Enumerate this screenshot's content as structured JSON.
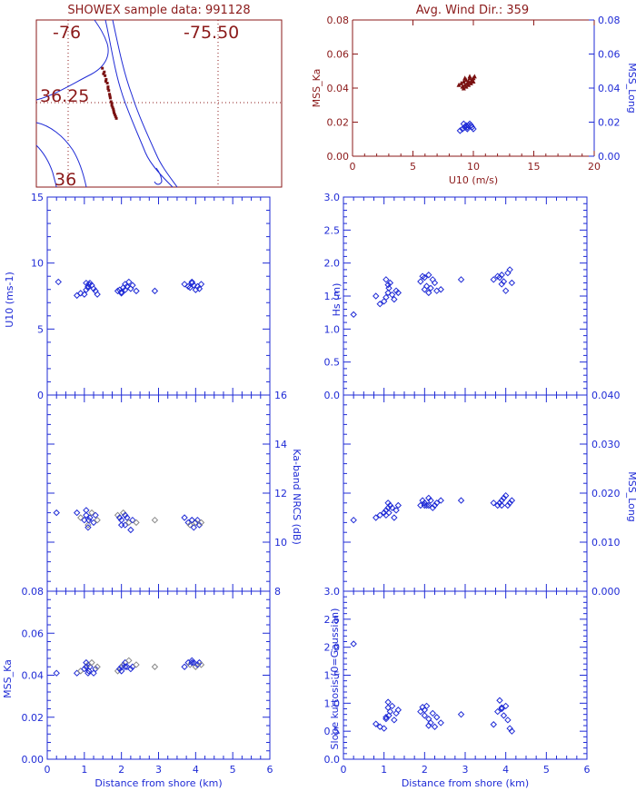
{
  "colors": {
    "dark_red": "#8b1a1a",
    "blue": "#1f2bd6",
    "maroon_marks": "#7a1010",
    "gray_marks": "#888888",
    "black": "#000000"
  },
  "map": {
    "title": "SHOWEX sample data: 991128",
    "lon_labels": [
      "-76",
      "-75.50"
    ],
    "lat_labels": [
      "36.25",
      "36"
    ],
    "shoreline_lon": [
      -75.98,
      -75.92,
      -75.87,
      -75.83,
      -75.81,
      -75.78,
      -75.76,
      -75.74,
      -75.74
    ],
    "shoreline_lat": [
      36.4,
      36.36,
      36.32,
      36.27,
      36.22,
      36.16,
      36.1,
      36.05,
      36.0
    ],
    "track_lon": [
      -75.875,
      -75.87,
      -75.868,
      -75.865,
      -75.862,
      -75.86,
      -75.858,
      -75.856,
      -75.854,
      -75.852,
      -75.85,
      -75.848,
      -75.846,
      -75.844,
      -75.842,
      -75.84,
      -75.838,
      -75.872,
      -75.866,
      -75.86,
      -75.855,
      -75.85,
      -75.845
    ],
    "track_lat": [
      36.3,
      36.29,
      36.28,
      36.27,
      36.26,
      36.25,
      36.24,
      36.23,
      36.22,
      36.21,
      36.2,
      36.195,
      36.19,
      36.18,
      36.175,
      36.17,
      36.165,
      36.285,
      36.265,
      36.245,
      36.225,
      36.205,
      36.185
    ]
  },
  "chart_data": [
    {
      "type": "scatter",
      "title": "Avg. Wind Dir.: 359",
      "xlabel": "U10 (m/s)",
      "ylabel": "MSS_Ka",
      "y2label": "MSS_Long",
      "xlim": [
        0,
        20
      ],
      "ylim": [
        0,
        0.08
      ],
      "y2lim": [
        0,
        0.08
      ],
      "x_ticks": [
        "0",
        "5",
        "10",
        "15",
        "20"
      ],
      "y_ticks": [
        "0.00",
        "0.02",
        "0.04",
        "0.06",
        "0.08"
      ],
      "y2_ticks": [
        "0.00",
        "0.02",
        "0.04",
        "0.06",
        "0.08"
      ],
      "series": [
        {
          "name": "MSS_Ka",
          "color": "#7a1010",
          "marker": "triangle",
          "x": [
            8.8,
            9.0,
            9.1,
            9.2,
            9.3,
            9.4,
            9.5,
            9.6,
            9.7,
            9.8,
            9.9,
            10.0,
            10.1,
            9.2,
            9.4,
            9.6,
            9.8,
            10.0,
            9.3,
            9.7
          ],
          "y": [
            0.042,
            0.043,
            0.041,
            0.044,
            0.042,
            0.045,
            0.043,
            0.044,
            0.046,
            0.044,
            0.045,
            0.046,
            0.047,
            0.04,
            0.041,
            0.042,
            0.043,
            0.044,
            0.046,
            0.047
          ]
        },
        {
          "name": "MSS_Long",
          "color": "#1f2bd6",
          "marker": "diamond",
          "x": [
            8.9,
            9.1,
            9.3,
            9.4,
            9.5,
            9.6,
            9.7,
            9.8,
            9.9,
            10.0,
            9.2,
            9.5,
            9.8
          ],
          "y": [
            0.015,
            0.016,
            0.017,
            0.018,
            0.017,
            0.018,
            0.019,
            0.018,
            0.017,
            0.016,
            0.019,
            0.016,
            0.018
          ]
        }
      ]
    },
    {
      "type": "scatter",
      "ylabel": "U10 (ms-1)",
      "xlim": [
        0,
        6
      ],
      "ylim": [
        0,
        17.5
      ],
      "y_ticks": [
        "0",
        "5",
        "10",
        "15"
      ],
      "series": [
        {
          "color": "#1f2bd6",
          "x": [
            0.3,
            0.8,
            0.9,
            1.0,
            1.05,
            1.1,
            1.12,
            1.15,
            1.2,
            1.25,
            1.3,
            1.35,
            1.05,
            1.1,
            1.9,
            1.95,
            2.0,
            2.05,
            2.1,
            2.15,
            2.2,
            2.25,
            2.3,
            2.4,
            2.0,
            2.1,
            2.9,
            3.7,
            3.8,
            3.85,
            3.9,
            3.95,
            4.0,
            4.05,
            4.1,
            4.15,
            3.9
          ],
          "y": [
            10.0,
            8.8,
            9.0,
            8.9,
            9.3,
            9.6,
            9.8,
            9.9,
            9.7,
            9.4,
            9.2,
            8.9,
            9.9,
            9.5,
            9.2,
            9.3,
            9.0,
            9.5,
            9.8,
            9.6,
            10.0,
            9.4,
            9.7,
            9.2,
            9.1,
            9.3,
            9.2,
            9.8,
            9.6,
            9.5,
            9.9,
            9.7,
            9.3,
            9.6,
            9.4,
            9.8,
            10.0
          ]
        }
      ]
    },
    {
      "type": "scatter",
      "ylabel": "Hs (m)",
      "xlim": [
        0,
        6
      ],
      "ylim": [
        0,
        3.0
      ],
      "y_ticks": [
        "0.0",
        "0.5",
        "1.0",
        "1.5",
        "2.0",
        "2.5",
        "3.0"
      ],
      "series": [
        {
          "color": "#1f2bd6",
          "x": [
            0.25,
            0.8,
            0.9,
            1.0,
            1.05,
            1.1,
            1.12,
            1.15,
            1.2,
            1.25,
            1.3,
            1.35,
            1.05,
            1.1,
            1.9,
            1.95,
            2.0,
            2.05,
            2.1,
            2.15,
            2.2,
            2.25,
            2.3,
            2.4,
            2.0,
            2.1,
            2.9,
            3.7,
            3.8,
            3.85,
            3.9,
            3.95,
            4.0,
            4.05,
            4.1,
            4.15,
            3.9
          ],
          "y": [
            1.22,
            1.5,
            1.38,
            1.42,
            1.48,
            1.55,
            1.62,
            1.7,
            1.52,
            1.45,
            1.58,
            1.55,
            1.75,
            1.67,
            1.72,
            1.8,
            1.78,
            1.65,
            1.55,
            1.62,
            1.75,
            1.7,
            1.58,
            1.6,
            1.6,
            1.82,
            1.75,
            1.75,
            1.8,
            1.78,
            1.68,
            1.72,
            1.58,
            1.85,
            1.9,
            1.7,
            1.82
          ]
        }
      ]
    },
    {
      "type": "scatter",
      "y2label": "Ka-band NRCS (dB)",
      "xlim": [
        0,
        6
      ],
      "ylim": [
        8,
        16
      ],
      "y2_ticks": [
        "8",
        "10",
        "12",
        "14",
        "16"
      ],
      "series": [
        {
          "color": "#1f2bd6",
          "color2": "#888888",
          "x": [
            0.25,
            0.8,
            0.9,
            1.0,
            1.05,
            1.1,
            1.12,
            1.15,
            1.2,
            1.25,
            1.3,
            1.35,
            1.05,
            1.1,
            1.9,
            1.95,
            2.0,
            2.05,
            2.1,
            2.15,
            2.2,
            2.25,
            2.3,
            2.4,
            2.0,
            2.1,
            2.9,
            3.7,
            3.8,
            3.85,
            3.9,
            3.95,
            4.0,
            4.05,
            4.1,
            4.15,
            3.9
          ],
          "y": [
            11.2,
            11.2,
            11.0,
            10.9,
            11.1,
            10.7,
            10.9,
            11.0,
            11.2,
            10.8,
            11.1,
            10.9,
            11.3,
            10.6,
            11.1,
            11.0,
            10.9,
            11.2,
            10.7,
            11.0,
            10.8,
            10.5,
            10.9,
            10.8,
            10.7,
            11.1,
            10.9,
            11.0,
            10.8,
            10.7,
            10.9,
            10.6,
            10.8,
            10.9,
            10.7,
            10.8,
            10.9
          ]
        }
      ]
    },
    {
      "type": "scatter",
      "y2label": "MSS_Long",
      "xlim": [
        0,
        6
      ],
      "ylim": [
        0,
        0.04
      ],
      "y2_ticks": [
        "0.000",
        "0.010",
        "0.020",
        "0.030",
        "0.040"
      ],
      "series": [
        {
          "color": "#1f2bd6",
          "x": [
            0.25,
            0.8,
            0.9,
            1.0,
            1.05,
            1.1,
            1.12,
            1.15,
            1.2,
            1.25,
            1.3,
            1.35,
            1.05,
            1.1,
            1.9,
            1.95,
            2.0,
            2.05,
            2.1,
            2.15,
            2.2,
            2.25,
            2.3,
            2.4,
            2.0,
            2.1,
            2.9,
            3.7,
            3.8,
            3.85,
            3.9,
            3.95,
            4.0,
            4.05,
            4.1,
            4.15,
            3.9
          ],
          "y": [
            0.0145,
            0.015,
            0.0155,
            0.016,
            0.0165,
            0.017,
            0.016,
            0.0175,
            0.017,
            0.015,
            0.0165,
            0.0175,
            0.0155,
            0.018,
            0.0175,
            0.0185,
            0.018,
            0.0175,
            0.019,
            0.0185,
            0.017,
            0.0175,
            0.018,
            0.0185,
            0.0175,
            0.0175,
            0.0185,
            0.018,
            0.0175,
            0.018,
            0.0185,
            0.019,
            0.0195,
            0.0175,
            0.018,
            0.0185,
            0.0175
          ]
        }
      ]
    },
    {
      "type": "scatter",
      "xlabel": "Distance from shore (km)",
      "ylabel": "MSS_Ka",
      "xlim": [
        0,
        6
      ],
      "ylim": [
        0,
        0.08
      ],
      "x_ticks": [
        "0",
        "1",
        "2",
        "3",
        "4",
        "5",
        "6"
      ],
      "y_ticks": [
        "0.00",
        "0.02",
        "0.04",
        "0.06",
        "0.08"
      ],
      "series": [
        {
          "color": "#1f2bd6",
          "color2": "#888888",
          "x": [
            0.25,
            0.8,
            0.9,
            1.0,
            1.05,
            1.1,
            1.12,
            1.15,
            1.2,
            1.25,
            1.3,
            1.35,
            1.05,
            1.1,
            1.9,
            1.95,
            2.0,
            2.05,
            2.1,
            2.15,
            2.2,
            2.25,
            2.3,
            2.4,
            2.0,
            2.1,
            2.9,
            3.7,
            3.8,
            3.85,
            3.9,
            3.95,
            4.0,
            4.05,
            4.1,
            4.15,
            3.9
          ],
          "y": [
            0.041,
            0.041,
            0.042,
            0.043,
            0.044,
            0.045,
            0.042,
            0.044,
            0.046,
            0.041,
            0.043,
            0.044,
            0.046,
            0.041,
            0.042,
            0.043,
            0.044,
            0.045,
            0.046,
            0.044,
            0.047,
            0.043,
            0.044,
            0.045,
            0.042,
            0.044,
            0.044,
            0.044,
            0.046,
            0.045,
            0.047,
            0.046,
            0.044,
            0.045,
            0.046,
            0.045,
            0.046
          ]
        }
      ]
    },
    {
      "type": "scatter",
      "xlabel": "Distance from shore (km)",
      "ylabel": "Slope kurtosis (0=Gaussian)",
      "xlim": [
        0,
        6
      ],
      "ylim": [
        0,
        3.0
      ],
      "x_ticks": [
        "0",
        "1",
        "2",
        "3",
        "4",
        "5",
        "6"
      ],
      "y_ticks": [
        "0.0",
        "0.5",
        "1.0",
        "1.5",
        "2.0",
        "2.5",
        "3.0"
      ],
      "series": [
        {
          "color": "#1f2bd6",
          "x": [
            0.25,
            0.8,
            0.9,
            1.0,
            1.05,
            1.1,
            1.12,
            1.15,
            1.2,
            1.25,
            1.3,
            1.35,
            1.05,
            1.1,
            1.9,
            1.95,
            2.0,
            2.05,
            2.1,
            2.15,
            2.2,
            2.25,
            2.3,
            2.4,
            2.0,
            2.1,
            2.9,
            3.7,
            3.8,
            3.85,
            3.9,
            3.95,
            4.0,
            4.05,
            4.1,
            4.15,
            3.9
          ],
          "y": [
            2.06,
            0.63,
            0.58,
            0.55,
            0.75,
            1.02,
            0.78,
            0.85,
            0.95,
            0.7,
            0.82,
            0.88,
            0.72,
            0.92,
            0.85,
            0.93,
            0.78,
            0.95,
            0.72,
            0.65,
            0.82,
            0.58,
            0.75,
            0.65,
            0.88,
            0.6,
            0.8,
            0.62,
            0.85,
            1.05,
            0.9,
            0.78,
            0.95,
            0.7,
            0.55,
            0.5,
            0.92
          ]
        }
      ]
    }
  ]
}
